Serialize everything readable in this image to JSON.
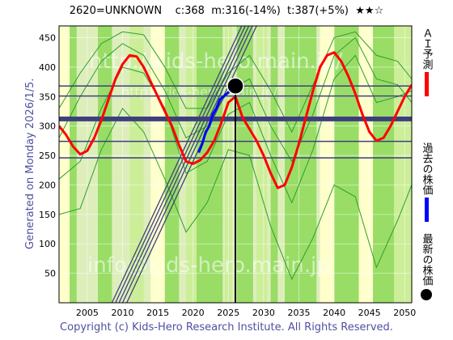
{
  "header": {
    "code_title": "2620=UNKNOWN",
    "current": "c:368",
    "min": "m:316(-14%)",
    "target": "t:387(+5%)",
    "stars": "★★☆"
  },
  "side_label": "Generated on Monday 2026/1/5.",
  "copyright": "Copyright (c) Kids-Hero Research Institute. All Rights Reserved.",
  "watermarks": [
    "http://kids-hero.main.jp/",
    "http://kids-hero.main.jp/",
    "info@kids-hero.main.jp"
  ],
  "legend": [
    {
      "label": "ＡＩ予測",
      "color": "#ff0000"
    },
    {
      "label": "過去の株価",
      "color": "#0000ff"
    },
    {
      "label": "最新の株価",
      "color": "#000000"
    }
  ],
  "colors": {
    "ai": "#ff0000",
    "past": "#0000ff",
    "band_green": "#99dd66",
    "band_light": "#ccee99",
    "band_yellow": "#ffffcc",
    "hline": "#3f3f7f",
    "trend": "#3f3f7f",
    "envelope": "#2e9e2e"
  },
  "chart_data": {
    "type": "line",
    "title": "",
    "xlabel": "",
    "ylabel": "",
    "xlim": [
      2001,
      2051
    ],
    "ylim": [
      0,
      470
    ],
    "xticks": [
      2005,
      2010,
      2015,
      2020,
      2025,
      2030,
      2035,
      2040,
      2045,
      2050
    ],
    "yticks": [
      0,
      50,
      100,
      150,
      200,
      250,
      300,
      350,
      400,
      450
    ],
    "grid": true,
    "hlines": [
      368,
      351,
      314,
      310,
      274,
      246
    ],
    "hlines_bold": [
      314,
      310
    ],
    "current_point": {
      "x": 2026.0,
      "y": 368
    },
    "vline_x": 2026.0,
    "ai_forecast": {
      "name": "ＡＩ予測",
      "x": [
        2001,
        2002,
        2003,
        2004,
        2005,
        2006,
        2007,
        2008,
        2009,
        2010,
        2011,
        2012,
        2013,
        2014,
        2015,
        2016,
        2017,
        2018,
        2019,
        2020,
        2021,
        2022,
        2023,
        2024,
        2025,
        2026,
        2027,
        2028,
        2029,
        2030,
        2031,
        2032,
        2033,
        2034,
        2035,
        2036,
        2037,
        2038,
        2039,
        2040,
        2041,
        2042,
        2043,
        2044,
        2045,
        2046,
        2047,
        2048,
        2049,
        2050,
        2051
      ],
      "y": [
        300,
        285,
        265,
        252,
        258,
        280,
        310,
        345,
        380,
        405,
        420,
        418,
        400,
        375,
        350,
        325,
        300,
        268,
        240,
        236,
        242,
        255,
        275,
        305,
        340,
        350,
        315,
        295,
        275,
        250,
        220,
        195,
        200,
        230,
        270,
        315,
        360,
        400,
        420,
        425,
        410,
        385,
        355,
        320,
        290,
        275,
        280,
        300,
        325,
        350,
        370
      ]
    },
    "past_price": {
      "name": "過去の株価",
      "x": [
        2020.8,
        2021.3,
        2021.8,
        2022.3,
        2022.8,
        2023.3,
        2023.8,
        2024.3,
        2024.8,
        2025.3,
        2025.8
      ],
      "y": [
        255,
        270,
        290,
        300,
        320,
        330,
        345,
        350,
        355,
        360,
        368
      ]
    },
    "trend_lines": [
      {
        "x": [
          2008.5,
          2026.9
        ],
        "y": [
          0,
          470
        ]
      },
      {
        "x": [
          2009.0,
          2027.4
        ],
        "y": [
          0,
          470
        ]
      },
      {
        "x": [
          2009.5,
          2027.9
        ],
        "y": [
          0,
          470
        ]
      },
      {
        "x": [
          2010.0,
          2028.4
        ],
        "y": [
          0,
          470
        ]
      },
      {
        "x": [
          2010.6,
          2029.0
        ],
        "y": [
          0,
          470
        ]
      }
    ],
    "envelope_lines": [
      {
        "x": [
          2001,
          2004,
          2007,
          2010,
          2013,
          2016,
          2019,
          2022,
          2025,
          2028,
          2031,
          2034,
          2037,
          2040,
          2043,
          2046,
          2049,
          2051
        ],
        "y": [
          210,
          240,
          330,
          400,
          390,
          330,
          220,
          240,
          320,
          340,
          250,
          170,
          260,
          380,
          420,
          340,
          350,
          360
        ]
      },
      {
        "x": [
          2001,
          2004,
          2007,
          2010,
          2013,
          2016,
          2019,
          2022,
          2025,
          2028,
          2031,
          2034,
          2037,
          2040,
          2043,
          2046,
          2049,
          2051
        ],
        "y": [
          280,
          350,
          410,
          440,
          420,
          360,
          280,
          300,
          360,
          380,
          300,
          240,
          320,
          420,
          450,
          380,
          370,
          340
        ]
      },
      {
        "x": [
          2001,
          2004,
          2007,
          2010,
          2013,
          2016,
          2019,
          2022,
          2025,
          2028,
          2031,
          2034,
          2037,
          2040,
          2043,
          2046,
          2049,
          2051
        ],
        "y": [
          330,
          390,
          440,
          460,
          455,
          400,
          330,
          330,
          390,
          420,
          360,
          290,
          370,
          450,
          460,
          420,
          410,
          380
        ]
      },
      {
        "x": [
          2001,
          2004,
          2007,
          2010,
          2013,
          2016,
          2019,
          2022,
          2025,
          2028,
          2031,
          2034,
          2037,
          2040,
          2043,
          2046,
          2049,
          2051
        ],
        "y": [
          150,
          160,
          260,
          330,
          290,
          210,
          120,
          170,
          260,
          250,
          130,
          40,
          110,
          200,
          180,
          60,
          140,
          200
        ]
      }
    ],
    "bands": [
      {
        "x0": 2001,
        "x1": 2002.5,
        "kind": "yellow"
      },
      {
        "x0": 2002.5,
        "x1": 2003.5,
        "kind": "green"
      },
      {
        "x0": 2006.5,
        "x1": 2008.5,
        "kind": "green"
      },
      {
        "x0": 2011,
        "x1": 2013,
        "kind": "light"
      },
      {
        "x0": 2014,
        "x1": 2016,
        "kind": "yellow"
      },
      {
        "x0": 2016,
        "x1": 2018,
        "kind": "green"
      },
      {
        "x0": 2019,
        "x1": 2020.5,
        "kind": "light"
      },
      {
        "x0": 2020.5,
        "x1": 2024.2,
        "kind": "green"
      },
      {
        "x0": 2024.5,
        "x1": 2025.5,
        "kind": "light"
      },
      {
        "x0": 2026.2,
        "x1": 2028.5,
        "kind": "green"
      },
      {
        "x0": 2029,
        "x1": 2030.5,
        "kind": "light"
      },
      {
        "x0": 2031,
        "x1": 2032,
        "kind": "green"
      },
      {
        "x0": 2033,
        "x1": 2037.5,
        "kind": "green"
      },
      {
        "x0": 2038,
        "x1": 2040,
        "kind": "yellow"
      },
      {
        "x0": 2040,
        "x1": 2043.5,
        "kind": "green"
      },
      {
        "x0": 2043.5,
        "x1": 2045.5,
        "kind": "yellow"
      },
      {
        "x0": 2045.5,
        "x1": 2048.5,
        "kind": "green"
      },
      {
        "x0": 2048.5,
        "x1": 2051,
        "kind": "light"
      }
    ]
  }
}
